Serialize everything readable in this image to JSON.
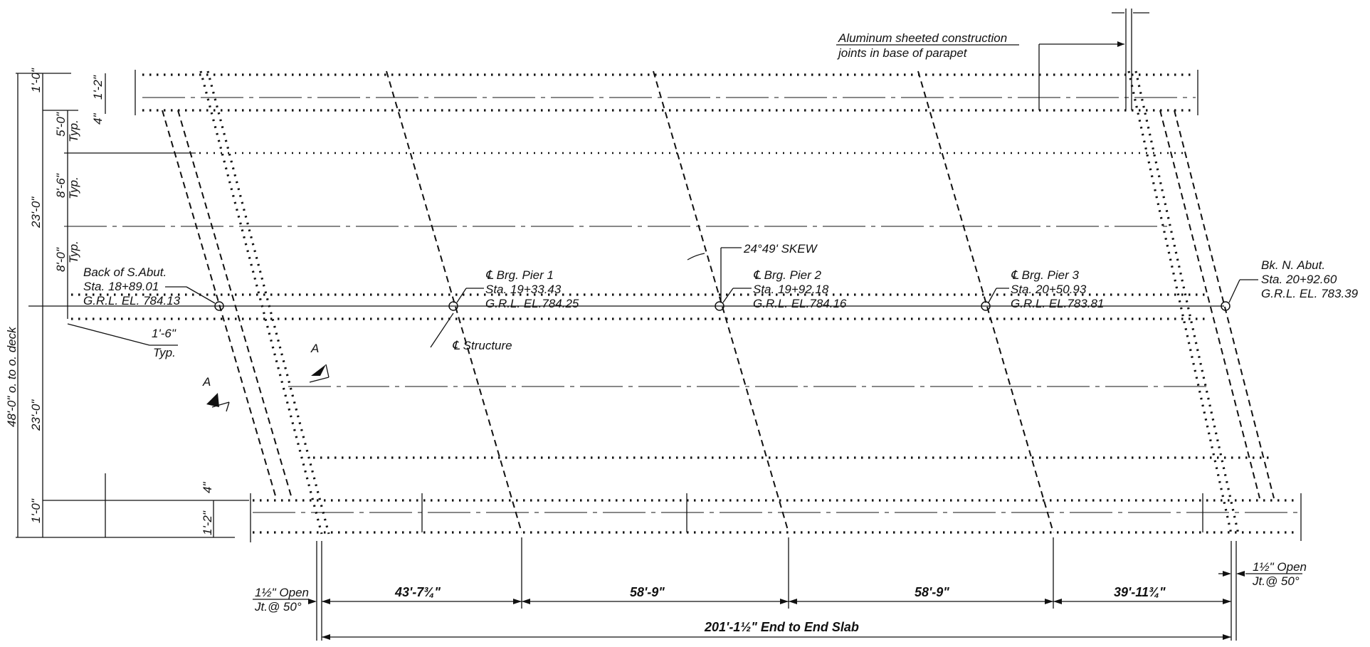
{
  "notes": {
    "joints_line1": "Aluminum sheeted construction",
    "joints_line2": "joints in base of parapet",
    "skew": "24°49' SKEW",
    "centerline": "℄ Structure"
  },
  "left_dims": {
    "overall": "48'-0\" o. to o. deck",
    "top_parapet": "1'-0\"",
    "top_half": "23'-0\"",
    "bottom_half": "23'-0\"",
    "bottom_parapet": "1'-0\"",
    "top_1_2": "1'-2\"",
    "top_4": "4\"",
    "spacing_5": "5'-0\"",
    "typ_a": "Typ.",
    "spacing_8_6": "8'-6\"",
    "typ_b": "Typ.",
    "spacing_8_0": "8'-0\"",
    "typ_c": "Typ.",
    "offset_1_6": "1'-6\"",
    "offset_typ": "Typ.",
    "bottom_4": "4\"",
    "bottom_1_2": "1'-2\""
  },
  "stations": [
    {
      "l1": "Back of S.Abut.",
      "l2": "Sta. 18+89.01",
      "l3": "G.R.L. EL. 784.13"
    },
    {
      "l1": "℄ Brg. Pier 1",
      "l2": "Sta. 19+33.43",
      "l3": "G.R.L. EL.784.25"
    },
    {
      "l1": "℄ Brg. Pier 2",
      "l2": "Sta. 19+92.18",
      "l3": "G.R.L. EL.784.16"
    },
    {
      "l1": "℄ Brg. Pier 3",
      "l2": "Sta. 20+50.93",
      "l3": "G.R.L. EL.783.81"
    },
    {
      "l1": "Bk. N. Abut.",
      "l2": "Sta. 20+92.60",
      "l3": "G.R.L. EL. 783.39"
    }
  ],
  "section_marks": {
    "a1": "A",
    "a2": "A"
  },
  "spans": {
    "s1": "43'-7¾\"",
    "s2": "58'-9\"",
    "s3": "58'-9\"",
    "s4": "39'-11¾\"",
    "total": "201'-1½\" End to End Slab"
  },
  "open_joints": {
    "left_l1": "1½\" Open",
    "left_l2": "Jt.@ 50°",
    "right_l1": "1½\" Open",
    "right_l2": "Jt.@ 50°"
  }
}
